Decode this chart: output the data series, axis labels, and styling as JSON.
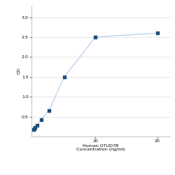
{
  "x": [
    0,
    0.156,
    0.312,
    0.625,
    1.25,
    2.5,
    5,
    10,
    20
  ],
  "y": [
    0.175,
    0.195,
    0.23,
    0.29,
    0.43,
    0.65,
    1.5,
    2.5,
    2.6
  ],
  "line_color": "#b8d0e8",
  "marker_color": "#1f4e79",
  "marker_size": 3.5,
  "xlabel_line1": "Human OTUD7B",
  "xlabel_line2": "Concentration (ng/ml)",
  "ylabel": "OD",
  "xlim": [
    -0.3,
    22
  ],
  "ylim": [
    0,
    3.3
  ],
  "xticks": [
    10,
    20
  ],
  "yticks": [
    0.5,
    1.0,
    1.5,
    2.0,
    2.5,
    3.0
  ],
  "grid_color": "#d0d0d0",
  "background_color": "#ffffff",
  "label_fontsize": 4.5,
  "tick_fontsize": 4.5,
  "ylabel_fontsize": 4.5
}
